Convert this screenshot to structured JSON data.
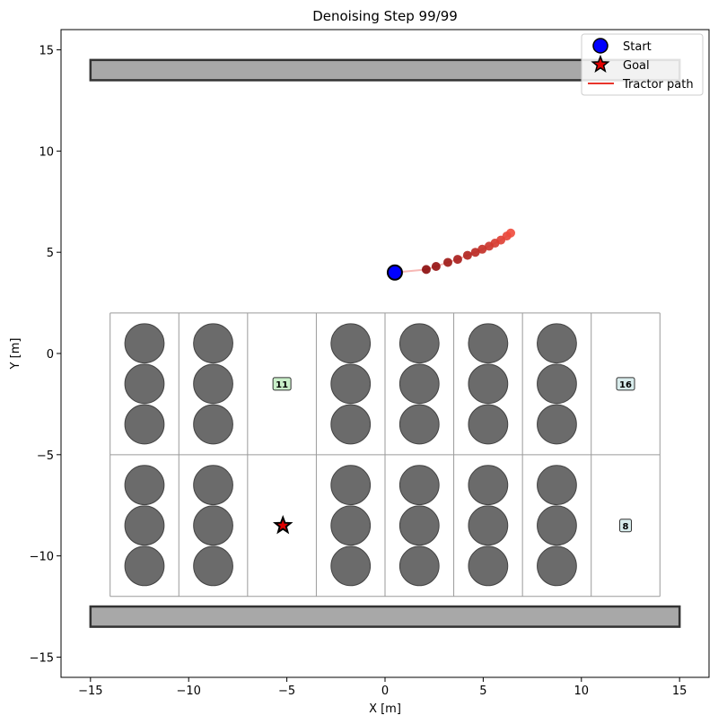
{
  "chart_data": {
    "type": "scatter",
    "title": "Denoising Step 99/99",
    "xlabel": "X [m]",
    "ylabel": "Y [m]",
    "xlim": [
      -16.5,
      16.5
    ],
    "ylim": [
      -16.0,
      16.0
    ],
    "xticks": [
      -15,
      -10,
      -5,
      0,
      5,
      10,
      15
    ],
    "yticks": [
      -15,
      -10,
      -5,
      0,
      5,
      10,
      15
    ],
    "tick_labels_x": [
      "−15",
      "−10",
      "−5",
      "0",
      "5",
      "10",
      "15"
    ],
    "tick_labels_y": [
      "−15",
      "−10",
      "−5",
      "0",
      "5",
      "10",
      "15"
    ],
    "legend_position": "top-right",
    "legend": [
      {
        "label": "Start",
        "marker": "circle"
      },
      {
        "label": "Goal",
        "marker": "star"
      },
      {
        "label": "Tractor path",
        "marker": "line"
      }
    ],
    "walls": [
      {
        "x0": -15.0,
        "x1": 15.0,
        "y0": 13.5,
        "y1": 14.5
      },
      {
        "x0": -15.0,
        "x1": 15.0,
        "y0": -13.5,
        "y1": -12.5
      }
    ],
    "grid_x_edges": [
      -14.0,
      -10.5,
      -7.0,
      -3.5,
      0.0,
      3.5,
      7.0,
      10.5,
      14.0
    ],
    "grid_y_edges": [
      -12.0,
      -5.0,
      2.0
    ],
    "tree_radius": 1.0,
    "tree_columns_x": [
      -12.25,
      -8.75,
      -1.75,
      1.75,
      5.25,
      8.75
    ],
    "tree_rows_y": [
      0.5,
      -1.5,
      -3.5,
      -6.5,
      -8.5,
      -10.5
    ],
    "cell_labels": [
      {
        "x": -5.25,
        "y": -1.5,
        "text": "11",
        "bg": "#c9efc9"
      },
      {
        "x": 12.25,
        "y": -1.5,
        "text": "16",
        "bg": "#d8ecec"
      },
      {
        "x": 12.25,
        "y": -8.5,
        "text": "8",
        "bg": "#d8ecec"
      }
    ],
    "start": {
      "x": 0.5,
      "y": 4.0
    },
    "goal": {
      "x": -5.2,
      "y": -8.5
    },
    "path": {
      "x": [
        0.5,
        2.1,
        2.6,
        3.2,
        3.7,
        4.2,
        4.6,
        4.95,
        5.3,
        5.6,
        5.9,
        6.2,
        6.4
      ],
      "y": [
        4.0,
        4.15,
        4.3,
        4.5,
        4.65,
        4.85,
        5.0,
        5.15,
        5.3,
        5.45,
        5.6,
        5.8,
        5.95
      ]
    },
    "colors": {
      "wall_fill": "#a8a8a8",
      "tree_fill": "#6b6b6b",
      "start_fill": "#0000ff",
      "path_line": "#e8342b",
      "path_dot_dark": "#8b0a0a",
      "path_dot_light": "#f04a3c",
      "grid_line": "#9a9a9a"
    }
  }
}
